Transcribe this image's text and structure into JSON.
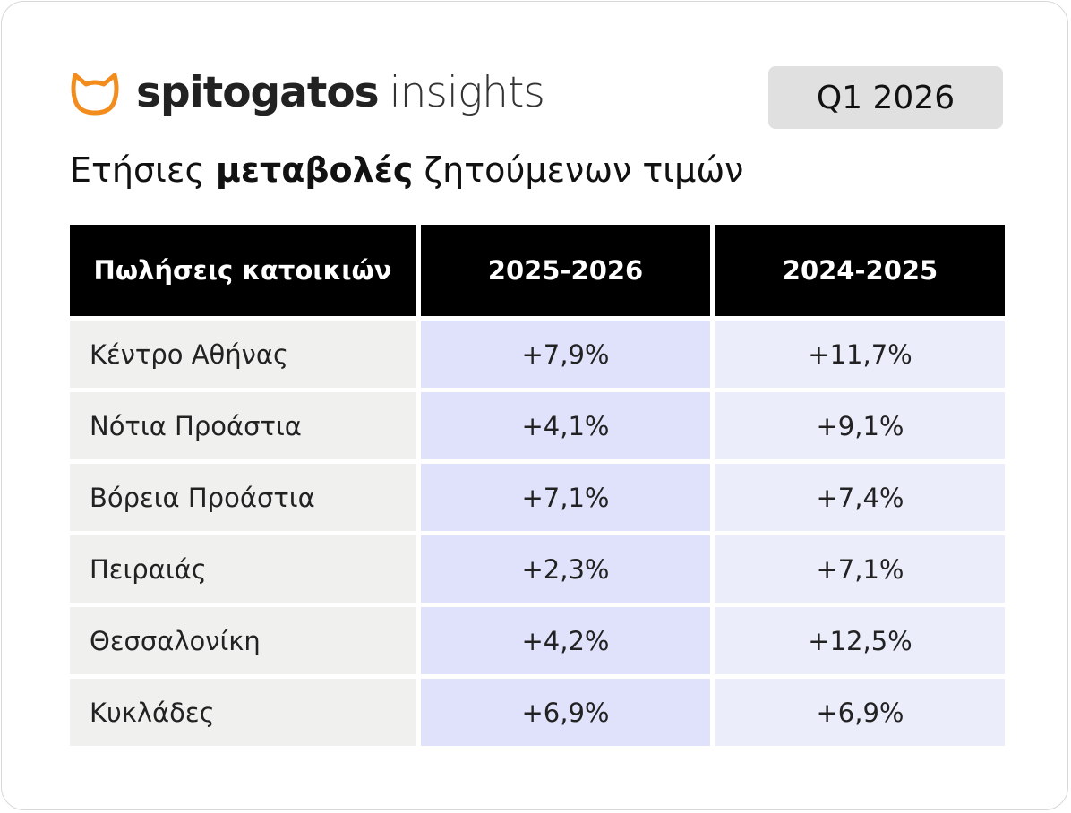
{
  "header": {
    "brand": "spitogatos",
    "brand_suffix": "insights",
    "badge": "Q1 2026"
  },
  "title": {
    "before": "Ετήσιες",
    "bold": "μεταβολές",
    "after": "ζητούμενων τιμών"
  },
  "table": {
    "columns": [
      "Πωλήσεις κατοικιών",
      "2025-2026",
      "2024-2025"
    ],
    "rows": [
      [
        "Κέντρο Αθήνας",
        "+7,9%",
        "+11,7%"
      ],
      [
        "Νότια Προάστια",
        "+4,1%",
        "+9,1%"
      ],
      [
        "Βόρεια Προάστια",
        "+7,1%",
        "+7,4%"
      ],
      [
        "Πειραιάς",
        "+2,3%",
        "+7,1%"
      ],
      [
        "Θεσσαλονίκη",
        "+4,2%",
        "+12,5%"
      ],
      [
        "Κυκλάδες",
        "+6,9%",
        "+6,9%"
      ]
    ]
  }
}
